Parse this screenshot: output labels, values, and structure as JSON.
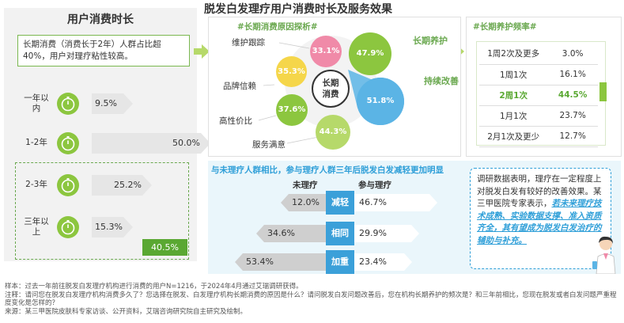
{
  "main_title": "脱发白发理疗用户消费时长及服务效果",
  "left": {
    "title": "用户消费时长",
    "description": "长期消费（消费长于2年）人群占比超40%，用户对理疗粘性较高。",
    "rows": [
      {
        "label": "一年以内",
        "value": "9.5%",
        "share": 9.5
      },
      {
        "label": "1-2年",
        "value": "50.0%",
        "share": 50.0
      },
      {
        "label": "2-3年",
        "value": "25.2%",
        "share": 25.2
      },
      {
        "label": "三年以上",
        "value": "15.3%",
        "share": 15.3
      }
    ],
    "long_term_badge": "40.5%"
  },
  "reasons": {
    "title": "#长期消费原因探析#",
    "center_line1": "长期",
    "center_line2": "消费",
    "items": [
      {
        "label": "维护跟踪",
        "value": "33.1%"
      },
      {
        "label": "长期养护",
        "value": "47.9%"
      },
      {
        "label": "品牌信赖",
        "value": "35.3%"
      },
      {
        "label": "持续改善",
        "value": "51.8%"
      },
      {
        "label": "高性价比",
        "value": "37.6%"
      },
      {
        "label": "服务满意",
        "value": "44.3%"
      }
    ],
    "colors": {
      "green": "#8cc63f",
      "light_green": "#b6d96a",
      "pink": "#f08aa8",
      "yellow": "#f5d64a",
      "blue": "#5bb4e5"
    }
  },
  "frequency": {
    "title": "#长期养护频率#",
    "rows": [
      {
        "label": "1周2次及更多",
        "value": "3.0%"
      },
      {
        "label": "1周1次",
        "value": "16.1%"
      },
      {
        "label": "2周1次",
        "value": "44.5%"
      },
      {
        "label": "1月1次",
        "value": "23.7%"
      },
      {
        "label": "2月1次及更少",
        "value": "12.7%"
      }
    ]
  },
  "comparison": {
    "title": "与未理疗人群相比，参与理疗人群三年后脱发白发减轻更加明显",
    "col_untreated": "未理疗",
    "col_treated": "参与理疗",
    "rows": [
      {
        "label": "减轻",
        "untreated": "12.0%",
        "treated": "46.7%",
        "untreated_value": 12.0,
        "treated_value": 46.7
      },
      {
        "label": "相同",
        "untreated": "34.6%",
        "treated": "29.9%",
        "untreated_value": 34.6,
        "treated_value": 29.9
      },
      {
        "label": "加重",
        "untreated": "53.4%",
        "treated": "23.4%",
        "untreated_value": 53.4,
        "treated_value": 23.4
      }
    ],
    "expert_text": "调研数据表明，理疗在一定程度上对脱发白发有较好的改善效果。某三甲医院专家表示，",
    "expert_highlight": "若未来理疗技术成熟、实验数据支撑、准入资质齐全，其有望成为脱发白发治疗的辅助与补充。"
  },
  "footnotes": {
    "sample": "样本：过去一年前往脱发白发理疗机构进行消费的用户N=1216，于2024年4月通过艾瑞调研获得。",
    "note": "注释：请问您在脱发白发理疗机构消费多久了？您选择在脱发、白发理疗机构长期消费的原因是什么？请问脱发白发问题改善后，您在机构长期养护的频次是？和三年前相比，您现在脱发或者白发问题严重程度变化是怎样的？",
    "source": "来源：某三甲医院皮肤科专家访谈、公开资料，艾瑞咨询研究院自主研究及绘制。"
  }
}
